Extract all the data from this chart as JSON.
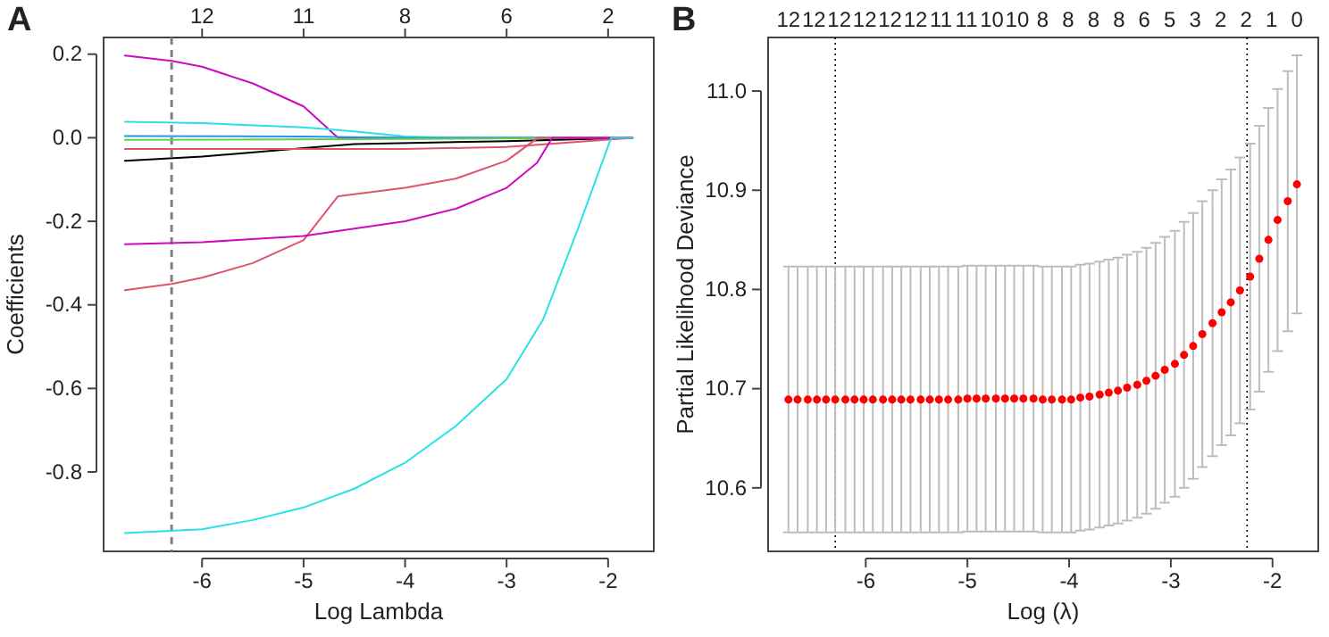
{
  "chart_data": [
    {
      "type": "line",
      "title": "A",
      "xlabel": "Log Lambda",
      "ylabel": "Coefficients",
      "xlim": [
        -6.97,
        -1.55
      ],
      "xticks": [
        -6,
        -5,
        -4,
        -3,
        -2
      ],
      "annotations": [
        "12",
        "11",
        "8",
        "6",
        "2"
      ],
      "ylim": [
        -0.99,
        0.24
      ],
      "yticks": [
        -0.8,
        -0.6,
        -0.4,
        -0.2,
        {
          "value": 0,
          "label": "0.0"
        },
        0.2
      ],
      "grid": false,
      "ref_lines": [
        {
          "axis": "x",
          "value": -6.3,
          "color": "#808080",
          "line_style": "dashed"
        }
      ],
      "series": [
        {
          "color": "#cd0bbc",
          "x": [
            -6.76,
            -6.3,
            -6,
            -5.5,
            -5,
            -4.66,
            -1.76
          ],
          "values": [
            0.197,
            0.184,
            0.17,
            0.13,
            0.075,
            0,
            0
          ]
        },
        {
          "color": "#28e2e5",
          "x": [
            -6.76,
            -6,
            -5,
            -4.5,
            -4,
            -3.5,
            -1.76
          ],
          "values": [
            0.038,
            0.035,
            0.025,
            0.015,
            0.003,
            0,
            0
          ]
        },
        {
          "color": "#2297e6",
          "x": [
            -6.76,
            -5,
            -4,
            -1.76
          ],
          "values": [
            0.004,
            0.003,
            0,
            0
          ]
        },
        {
          "color": "#61d04f",
          "x": [
            -6.76,
            -4,
            -1.76
          ],
          "values": [
            -0.005,
            -0.003,
            0
          ]
        },
        {
          "color": "#000000",
          "x": [
            -6.76,
            -6,
            -5,
            -4.5,
            -3,
            -1.76
          ],
          "values": [
            -0.055,
            -0.045,
            -0.025,
            -0.015,
            -0.008,
            0
          ]
        },
        {
          "color": "#df536b",
          "x": [
            -6.76,
            -4,
            -3,
            -2.6,
            -1.76
          ],
          "values": [
            -0.027,
            -0.027,
            -0.022,
            -0.015,
            0
          ]
        },
        {
          "color": "#df536b",
          "x": [
            -6.76,
            -6.3,
            -6,
            -5.5,
            -5,
            -4.66,
            -4,
            -3.5,
            -3,
            -2.69,
            -1.76
          ],
          "values": [
            -0.365,
            -0.35,
            -0.335,
            -0.3,
            -0.245,
            -0.14,
            -0.12,
            -0.098,
            -0.055,
            0,
            0
          ]
        },
        {
          "color": "#cd0bbc",
          "x": [
            -6.76,
            -6,
            -5,
            -4,
            -3.5,
            -3,
            -2.7,
            -2.55,
            -1.76
          ],
          "values": [
            -0.255,
            -0.25,
            -0.235,
            -0.2,
            -0.17,
            -0.12,
            -0.06,
            0,
            0
          ]
        },
        {
          "color": "#28e2e5",
          "x": [
            -6.76,
            -6,
            -5.5,
            -5,
            -4.5,
            -4,
            -3.5,
            -3,
            -2.64,
            -2.3,
            -1.97,
            -1.76
          ],
          "values": [
            -0.946,
            -0.937,
            -0.915,
            -0.885,
            -0.84,
            -0.778,
            -0.69,
            -0.578,
            -0.435,
            -0.22,
            0,
            0
          ]
        }
      ]
    },
    {
      "type": "scatter",
      "title": "B",
      "xlabel": "Log (λ)",
      "ylabel": "Partial Likelihood Deviance",
      "xlim": [
        -6.96,
        -1.55
      ],
      "xticks": [
        -6,
        -5,
        -4,
        -3,
        -2
      ],
      "annotations": [
        "12",
        "12",
        "12",
        "12",
        "12",
        "12",
        "11",
        "11",
        "10",
        "10",
        "8",
        "8",
        "8",
        "8",
        "6",
        "5",
        "3",
        "2",
        "2",
        "1",
        "0"
      ],
      "ylim": [
        10.536,
        11.054
      ],
      "yticks": [
        10.6,
        10.7,
        10.8,
        10.9,
        {
          "value": 11,
          "label": "11.0"
        }
      ],
      "grid": false,
      "marker": "circle",
      "ref_lines": [
        {
          "axis": "x",
          "value": -6.3,
          "color": "#000000",
          "line_style": "dotted"
        },
        {
          "axis": "x",
          "value": -2.25,
          "color": "#000000",
          "line_style": "dotted"
        }
      ],
      "series": [
        {
          "color": "#ff0000",
          "x": [
            -6.76,
            -6.67,
            -6.57,
            -6.48,
            -6.39,
            -6.3,
            -6.2,
            -6.11,
            -6.02,
            -5.93,
            -5.83,
            -5.74,
            -5.65,
            -5.56,
            -5.46,
            -5.37,
            -5.28,
            -5.19,
            -5.09,
            -5,
            -4.91,
            -4.82,
            -4.72,
            -4.63,
            -4.54,
            -4.45,
            -4.35,
            -4.26,
            -4.17,
            -4.07,
            -3.98,
            -3.89,
            -3.8,
            -3.7,
            -3.61,
            -3.52,
            -3.43,
            -3.33,
            -3.24,
            -3.15,
            -3.06,
            -2.96,
            -2.87,
            -2.78,
            -2.69,
            -2.59,
            -2.5,
            -2.41,
            -2.32,
            -2.22,
            -2.13,
            -2.04,
            -1.95,
            -1.85,
            -1.76
          ],
          "values": [
            10.689,
            10.689,
            10.689,
            10.689,
            10.689,
            10.689,
            10.689,
            10.689,
            10.689,
            10.689,
            10.689,
            10.689,
            10.689,
            10.689,
            10.689,
            10.689,
            10.689,
            10.689,
            10.689,
            10.69,
            10.69,
            10.69,
            10.69,
            10.69,
            10.69,
            10.69,
            10.69,
            10.689,
            10.689,
            10.689,
            10.689,
            10.691,
            10.692,
            10.694,
            10.696,
            10.698,
            10.701,
            10.704,
            10.708,
            10.713,
            10.719,
            10.725,
            10.734,
            10.743,
            10.755,
            10.766,
            10.777,
            10.787,
            10.799,
            10.813,
            10.831,
            10.85,
            10.87,
            10.889,
            10.906
          ],
          "errors": [
            0.134,
            0.134,
            0.134,
            0.134,
            0.134,
            0.134,
            0.134,
            0.134,
            0.134,
            0.134,
            0.134,
            0.134,
            0.134,
            0.134,
            0.134,
            0.134,
            0.134,
            0.134,
            0.134,
            0.134,
            0.134,
            0.134,
            0.134,
            0.134,
            0.134,
            0.134,
            0.134,
            0.134,
            0.134,
            0.134,
            0.134,
            0.134,
            0.134,
            0.134,
            0.134,
            0.134,
            0.134,
            0.134,
            0.134,
            0.134,
            0.134,
            0.134,
            0.134,
            0.134,
            0.134,
            0.134,
            0.134,
            0.134,
            0.134,
            0.134,
            0.134,
            0.133,
            0.132,
            0.131,
            0.13
          ]
        }
      ]
    }
  ]
}
